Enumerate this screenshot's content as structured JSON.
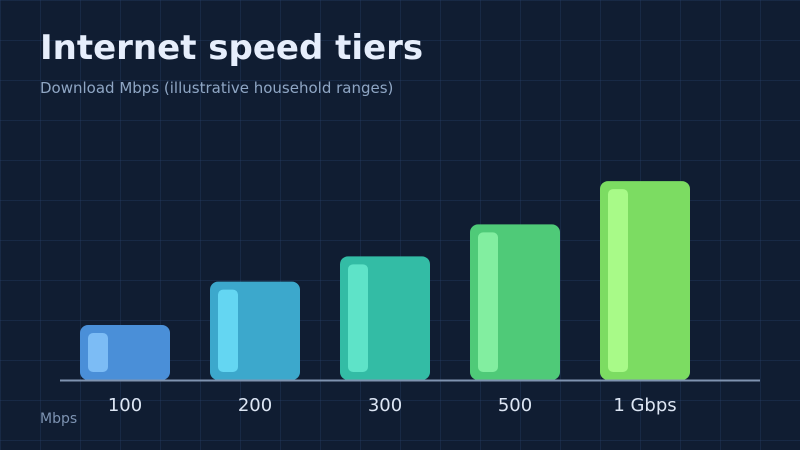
{
  "chart_data": {
    "type": "bar",
    "title": "Internet speed tiers",
    "subtitle": "Download Mbps (illustrative household ranges)",
    "xlabel": "",
    "ylabel": "Mbps",
    "categories": [
      "100",
      "200",
      "300",
      "500",
      "1 Gbps"
    ],
    "values": [
      100,
      200,
      300,
      500,
      1000
    ],
    "scale": "log",
    "grid": true,
    "colors": [
      "#4a8fd8",
      "#3ca8cc",
      "#33bca5",
      "#4fca78",
      "#7cdc62"
    ],
    "highlight_colors": [
      "#7cbcf5",
      "#64d6f2",
      "#5ee3c8",
      "#82eea0",
      "#a8fa88"
    ]
  }
}
